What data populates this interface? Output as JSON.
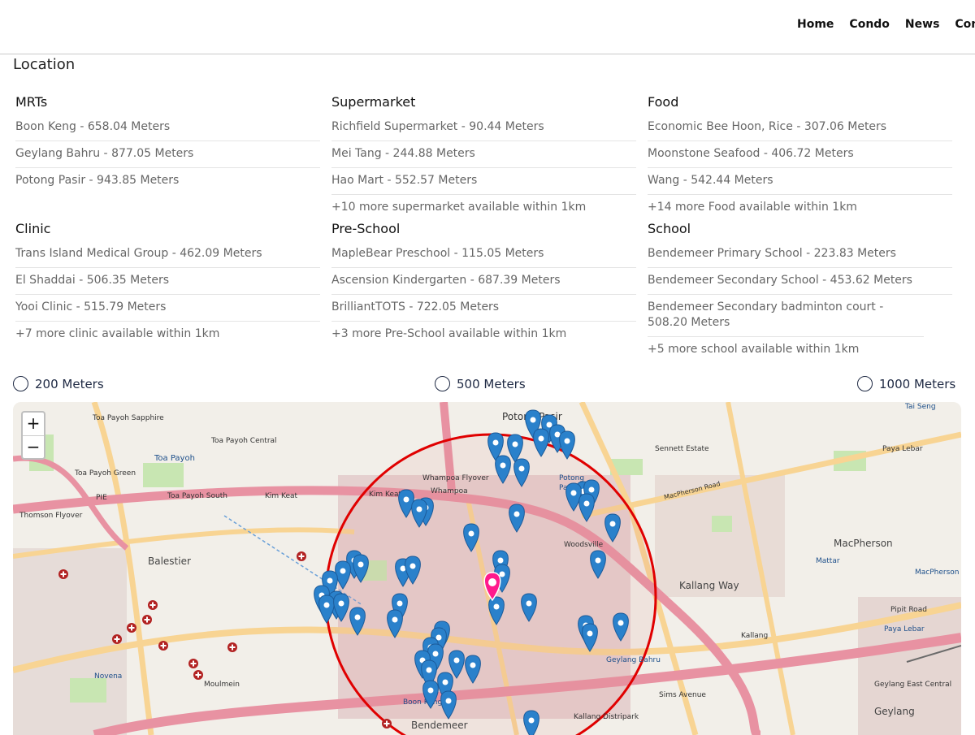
{
  "nav": {
    "items": [
      "Home",
      "Condo",
      "News",
      "Con"
    ]
  },
  "location_title": "Location",
  "amenities": {
    "mrt": {
      "title": "MRTs",
      "items": [
        "Boon Keng - 658.04 Meters",
        "Geylang Bahru - 877.05 Meters",
        "Potong Pasir - 943.85 Meters"
      ],
      "more": ""
    },
    "supermarket": {
      "title": "Supermarket",
      "items": [
        "Richfield Supermarket - 90.44 Meters",
        "Mei Tang - 244.88 Meters",
        "Hao Mart - 552.57 Meters"
      ],
      "more": "+10 more supermarket available within 1km"
    },
    "food": {
      "title": "Food",
      "items": [
        "Economic Bee Hoon, Rice - 307.06 Meters",
        "Moonstone Seafood - 406.72 Meters",
        "Wang - 542.44 Meters"
      ],
      "more": "+14 more Food available within 1km"
    },
    "clinic": {
      "title": "Clinic",
      "items": [
        "Trans Island Medical Group - 462.09 Meters",
        "El Shaddai - 506.35 Meters",
        "Yooi Clinic - 515.79 Meters"
      ],
      "more": "+7 more clinic available within 1km"
    },
    "preschool": {
      "title": "Pre-School",
      "items": [
        "MapleBear Preschool - 115.05 Meters",
        "Ascension Kindergarten - 687.39 Meters",
        "BrilliantTOTS - 722.05 Meters"
      ],
      "more": "+3 more Pre-School available within 1km"
    },
    "school": {
      "title": "School",
      "items": [
        "Bendemeer Primary School - 223.83 Meters",
        "Bendemeer Secondary School - 453.62 Meters",
        "Bendemeer Secondary badminton court - 508.20 Meters"
      ],
      "more": "+5 more school available within 1km"
    }
  },
  "radius_options": [
    "200 Meters",
    "500 Meters",
    "1000 Meters"
  ],
  "map": {
    "zoom_in": "+",
    "zoom_out": "−",
    "labels": {
      "potong_pasir": "Potong Pasir",
      "potong": "Potong",
      "pasir": "Pasir",
      "toa_payoh": "Toa Payoh",
      "toa_payoh_sapphire": "Toa Payoh Sapphire",
      "toa_payoh_central": "Toa Payoh Central",
      "toa_payoh_green": "Toa Payoh Green",
      "toa_payoh_south": "Toa Payoh South",
      "whampoa_flyover": "Whampoa Flyover",
      "whampoa": "Whampoa",
      "kim_keat": "Kim Keat",
      "balestier": "Balestier",
      "thomson_flyover": "Thomson Flyover",
      "novena": "Novena",
      "boon_keng": "Boon Keng",
      "bendemeer": "Bendemeer",
      "woodsville": "Woodsville",
      "kallang_way": "Kallang Way",
      "macpherson": "MacPherson",
      "mattar": "Mattar",
      "geylang_bahru": "Geylang Bahru",
      "kallang": "Kallang",
      "paya_lebar": "Paya Lebar",
      "geylang": "Geylang",
      "sennett_estate": "Sennett Estate",
      "tai_seng": "Tai Seng",
      "pie": "PIE",
      "sims_avenue": "Sims Avenue",
      "pipit_road": "Pipit Road",
      "moulmein": "Moulmein",
      "macpherson_road": "MacPherson Road",
      "kallang_distripark": "Kallang Distripark",
      "geylang_east": "Geylang East Central"
    },
    "colors": {
      "base": "#f2efe9",
      "residential": "#e1c8c8",
      "highway": "#e892a2",
      "major_road": "#f8d493",
      "park": "#c8e6b2",
      "circle": "#e00000",
      "marker": "#2a81cb",
      "center_marker": "#ff1a8c",
      "rail": "#6a6a6a"
    }
  }
}
